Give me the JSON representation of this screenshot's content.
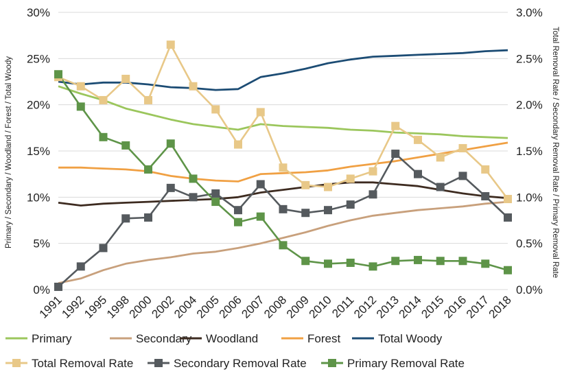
{
  "chart_data": {
    "type": "line",
    "categories": [
      "1991",
      "1992",
      "1995",
      "1998",
      "2000",
      "2002",
      "2004",
      "2005",
      "2006",
      "2007",
      "2008",
      "2009",
      "2010",
      "2011",
      "2012",
      "2013",
      "2014",
      "2015",
      "2016",
      "2017",
      "2018"
    ],
    "y_left": {
      "label": "Primary / Secondary / Woodland / Forest / Total Woody",
      "range": [
        0,
        30
      ],
      "ticks": [
        "0%",
        "5%",
        "10%",
        "15%",
        "20%",
        "25%",
        "30%"
      ]
    },
    "y_right": {
      "label": "Total Removal Rate / Secondary Removal Rate / Primary Removal Rate",
      "range": [
        0,
        3
      ],
      "ticks": [
        "0.0%",
        "0.5%",
        "1.0%",
        "1.5%",
        "2.0%",
        "2.5%",
        "3.0%"
      ]
    },
    "grid": "horizontal",
    "legend_position": "bottom",
    "series": [
      {
        "name": "Primary",
        "axis": "left",
        "color": "#9bc65c",
        "marker": "none",
        "values": [
          22.0,
          21.2,
          20.5,
          19.6,
          19.0,
          18.4,
          17.9,
          17.6,
          17.3,
          17.9,
          17.7,
          17.6,
          17.5,
          17.3,
          17.2,
          17.0,
          16.9,
          16.8,
          16.6,
          16.5,
          16.4
        ]
      },
      {
        "name": "Secondary",
        "axis": "left",
        "color": "#c8a07c",
        "marker": "none",
        "values": [
          0.7,
          1.2,
          2.1,
          2.8,
          3.2,
          3.5,
          3.9,
          4.1,
          4.5,
          5.0,
          5.6,
          6.2,
          6.9,
          7.5,
          8.0,
          8.3,
          8.6,
          8.8,
          9.0,
          9.3,
          9.5
        ]
      },
      {
        "name": "Woodland",
        "axis": "left",
        "color": "#3d2b20",
        "marker": "none",
        "values": [
          9.4,
          9.1,
          9.3,
          9.4,
          9.5,
          9.6,
          9.7,
          9.8,
          10.0,
          10.5,
          10.8,
          11.1,
          11.4,
          11.6,
          11.6,
          11.4,
          11.2,
          10.8,
          10.4,
          10.1,
          9.9
        ]
      },
      {
        "name": "Forest",
        "axis": "left",
        "color": "#f0a043",
        "marker": "none",
        "values": [
          13.2,
          13.2,
          13.1,
          13.0,
          12.8,
          12.3,
          12.0,
          11.8,
          11.7,
          12.5,
          12.6,
          12.7,
          12.9,
          13.3,
          13.6,
          13.9,
          14.3,
          14.7,
          15.1,
          15.5,
          15.9
        ]
      },
      {
        "name": "Total Woody",
        "axis": "left",
        "color": "#1c4c74",
        "marker": "none",
        "values": [
          22.5,
          22.2,
          22.4,
          22.4,
          22.2,
          21.9,
          21.8,
          21.6,
          21.7,
          23.0,
          23.4,
          23.9,
          24.5,
          24.9,
          25.2,
          25.3,
          25.4,
          25.5,
          25.6,
          25.8,
          25.9
        ]
      },
      {
        "name": "Total Removal Rate",
        "axis": "right",
        "color": "#e8c888",
        "marker": "square",
        "values": [
          2.3,
          2.2,
          2.05,
          2.28,
          2.05,
          2.65,
          2.2,
          1.95,
          1.57,
          1.92,
          1.32,
          1.13,
          1.11,
          1.2,
          1.28,
          1.77,
          1.62,
          1.43,
          1.53,
          1.3,
          0.98
        ]
      },
      {
        "name": "Secondary Removal Rate",
        "axis": "right",
        "color": "#555a5e",
        "marker": "square",
        "values": [
          0.03,
          0.25,
          0.45,
          0.77,
          0.78,
          1.1,
          1.0,
          1.04,
          0.86,
          1.14,
          0.87,
          0.83,
          0.86,
          0.92,
          1.03,
          1.47,
          1.25,
          1.11,
          1.23,
          1.01,
          0.78
        ]
      },
      {
        "name": "Primary Removal Rate",
        "axis": "right",
        "color": "#5e9448",
        "marker": "square",
        "values": [
          2.33,
          1.98,
          1.65,
          1.56,
          1.3,
          1.58,
          1.2,
          0.95,
          0.73,
          0.79,
          0.48,
          0.31,
          0.28,
          0.29,
          0.25,
          0.31,
          0.32,
          0.31,
          0.31,
          0.28,
          0.21
        ]
      }
    ]
  }
}
